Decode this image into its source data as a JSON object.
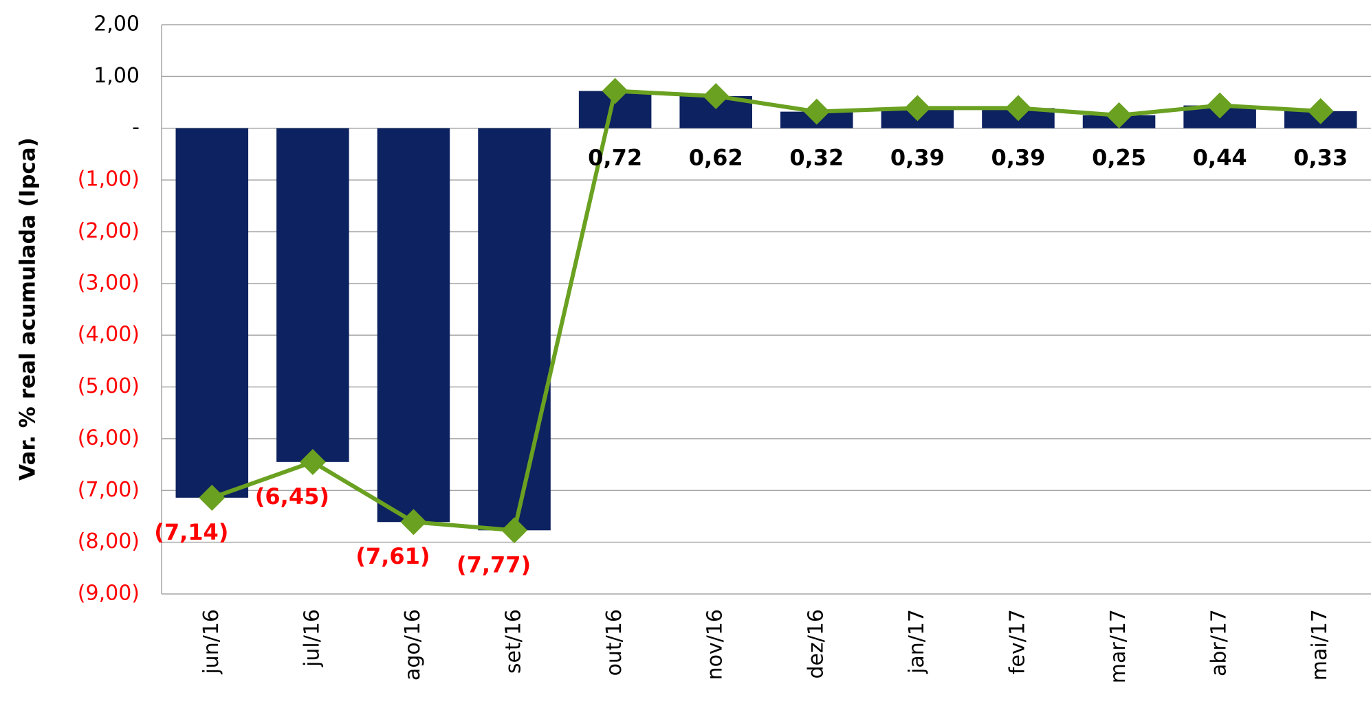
{
  "chart_data": {
    "type": "bar",
    "overlay": "line",
    "y_label": "Var. % real acumulada (Ipca)",
    "categories": [
      "jun/16",
      "jul/16",
      "ago/16",
      "set/16",
      "out/16",
      "nov/16",
      "dez/16",
      "jan/17",
      "fev/17",
      "mar/17",
      "abr/17",
      "mai/17"
    ],
    "values": [
      -7.14,
      -6.45,
      -7.61,
      -7.77,
      0.72,
      0.62,
      0.32,
      0.39,
      0.39,
      0.25,
      0.44,
      0.33
    ],
    "value_labels": [
      "(7,14)",
      "(6,45)",
      "(7,61)",
      "(7,77)",
      "0,72",
      "0,62",
      "0,32",
      "0,39",
      "0,39",
      "0,25",
      "0,44",
      "0,33"
    ],
    "color": "#0d2260",
    "line_color": "#6aa121",
    "negative_color": "#ff0000",
    "ylim": [
      -9,
      2
    ],
    "yticks": [
      {
        "value": -9,
        "label": "(9,00)"
      },
      {
        "value": -8,
        "label": "(8,00)"
      },
      {
        "value": -7,
        "label": "(7,00)"
      },
      {
        "value": -6,
        "label": "(6,00)"
      },
      {
        "value": -5,
        "label": "(5,00)"
      },
      {
        "value": -4,
        "label": "(4,00)"
      },
      {
        "value": -3,
        "label": "(3,00)"
      },
      {
        "value": -2,
        "label": "(2,00)"
      },
      {
        "value": -1,
        "label": "(1,00)"
      },
      {
        "value": 0,
        "label": "-"
      },
      {
        "value": 1,
        "label": "1,00"
      },
      {
        "value": 2,
        "label": "2,00"
      }
    ],
    "grid": true
  }
}
